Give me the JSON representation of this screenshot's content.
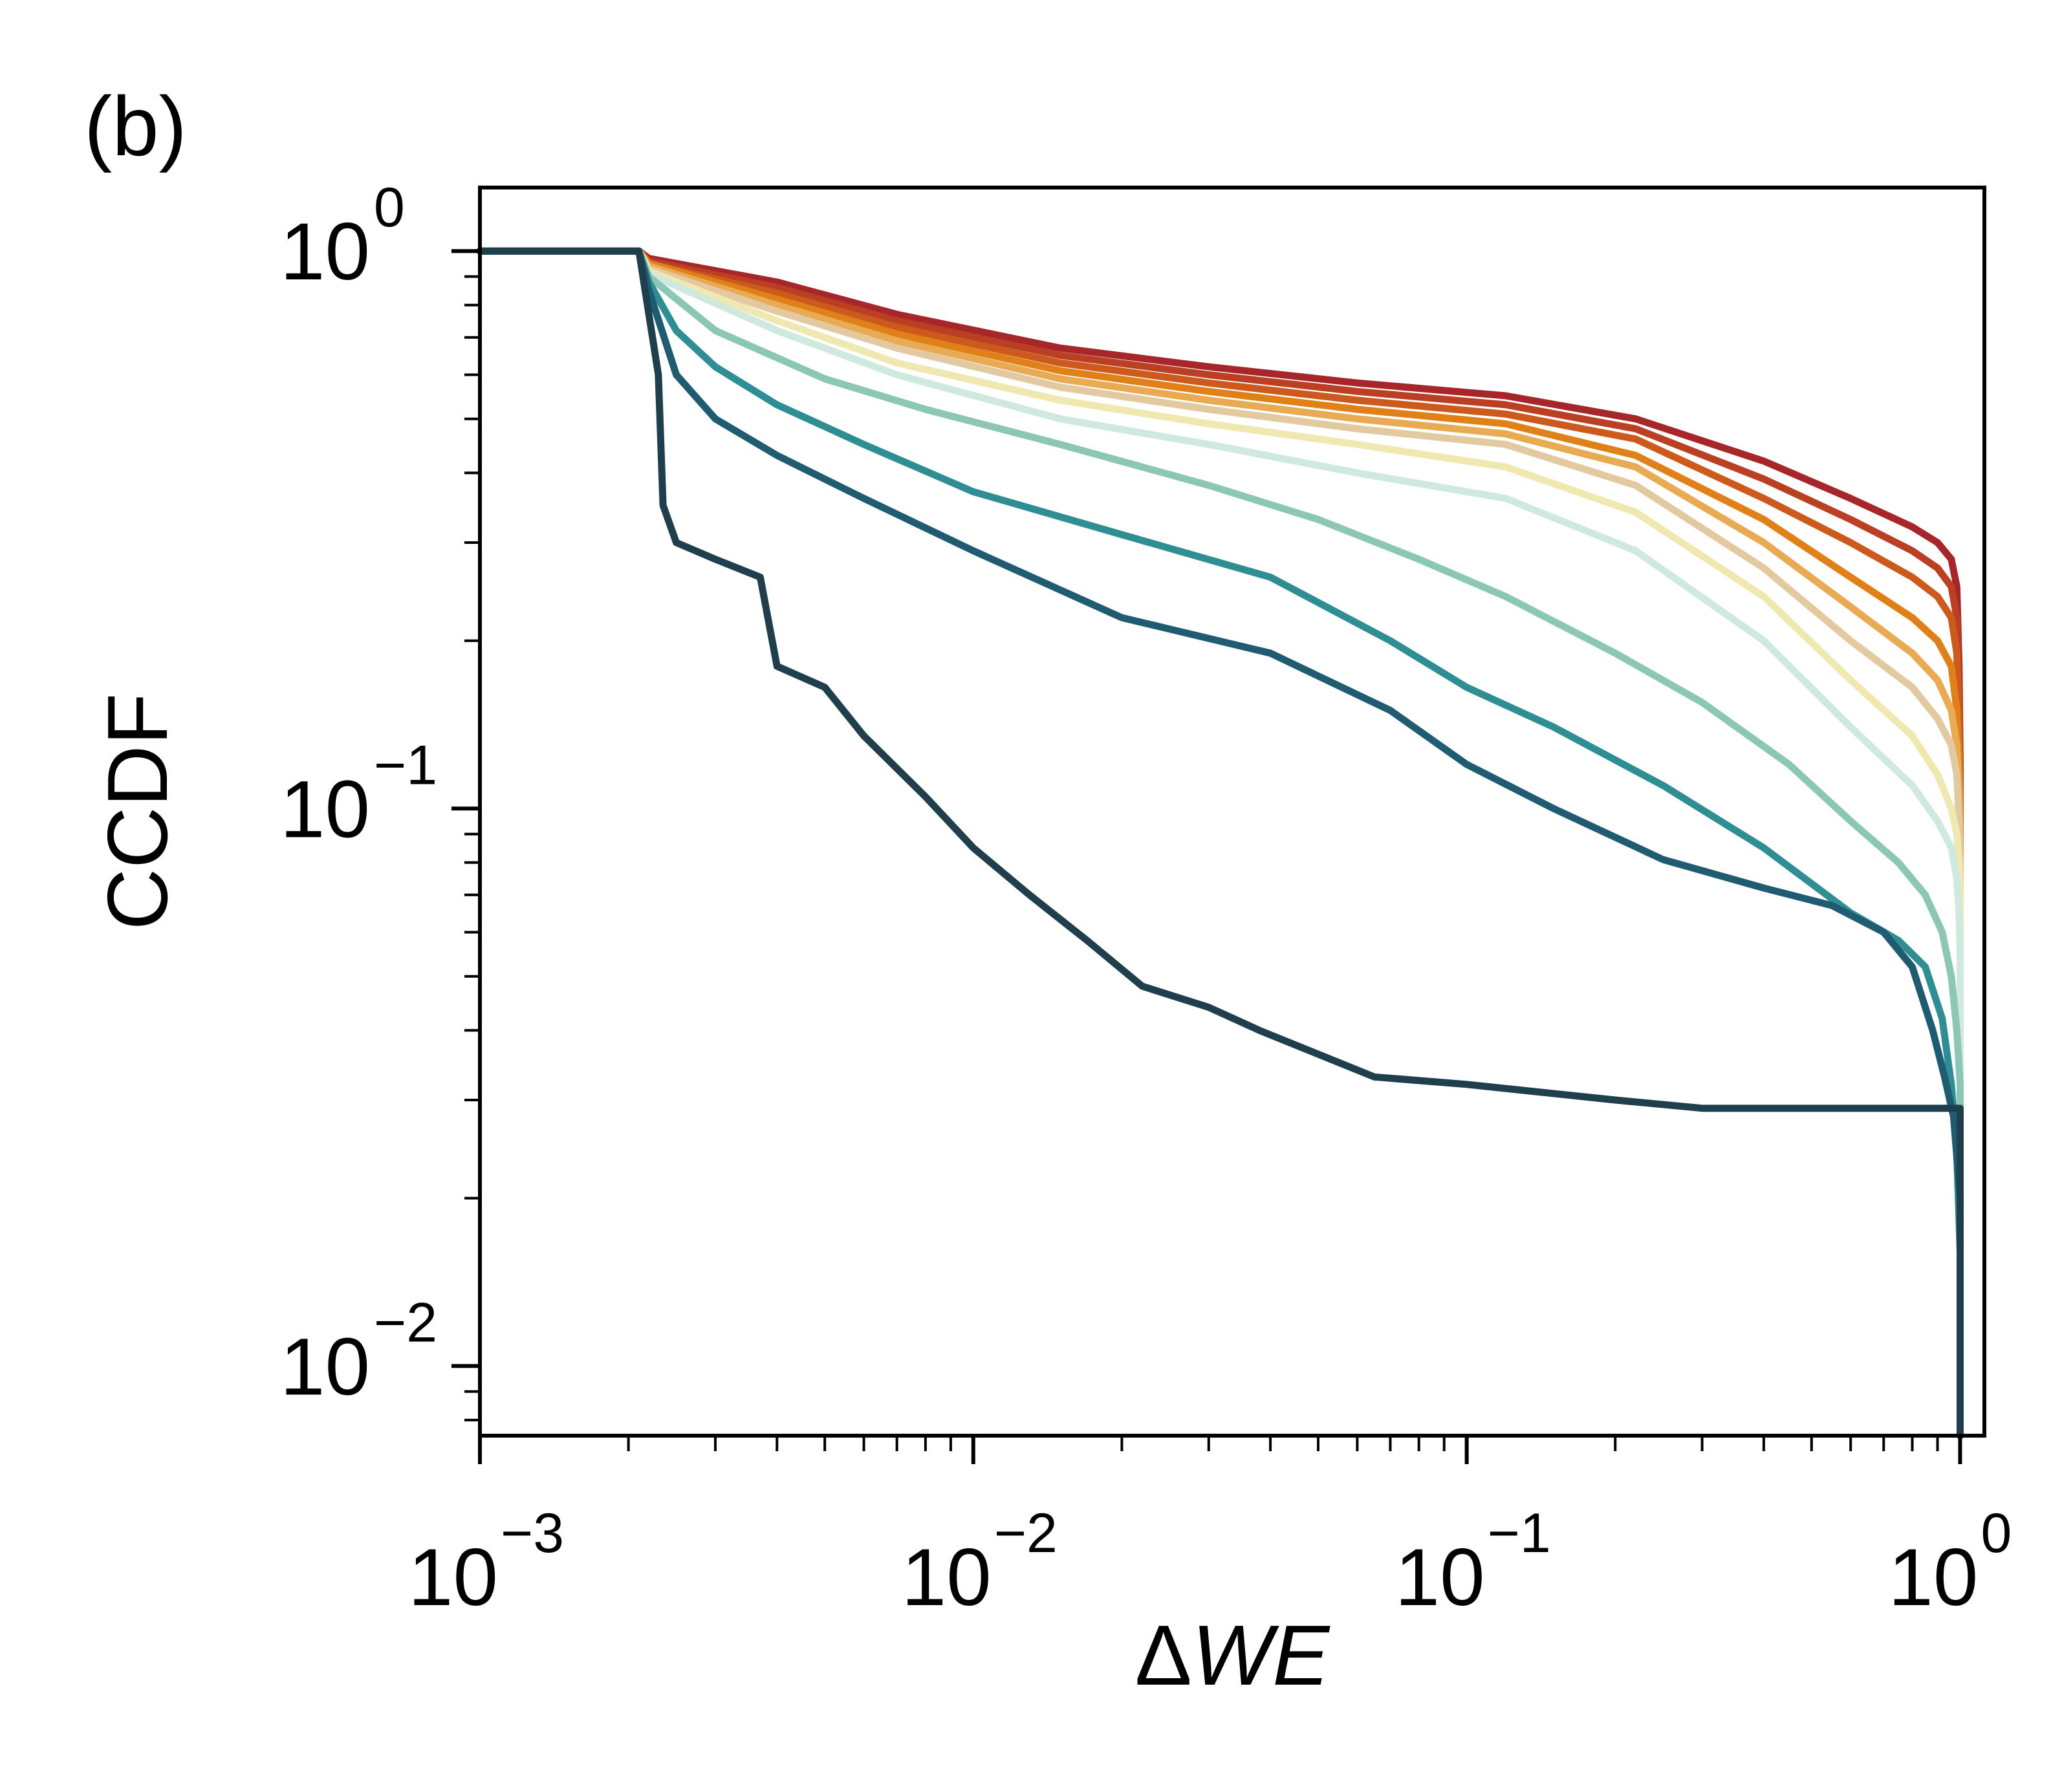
{
  "panel_label": "(b)",
  "chart_data": {
    "type": "line",
    "title": "",
    "xlabel": "ΔWE",
    "xlabel_delta": "Δ",
    "xlabel_var": "WE",
    "ylabel": "CCDF",
    "x_scale": "log",
    "y_scale": "log",
    "xlim": [
      0.001,
      1.12
    ],
    "ylim": [
      0.0075,
      1.3
    ],
    "grid": false,
    "legend": "none",
    "x_ticks": [
      {
        "value": 0.001,
        "base": "10",
        "exp": "−3"
      },
      {
        "value": 0.01,
        "base": "10",
        "exp": "−2"
      },
      {
        "value": 0.1,
        "base": "10",
        "exp": "−1"
      },
      {
        "value": 1,
        "base": "10",
        "exp": "0"
      }
    ],
    "y_ticks": [
      {
        "value": 1,
        "base": "10",
        "exp": "0"
      },
      {
        "value": 0.1,
        "base": "10",
        "exp": "−1"
      },
      {
        "value": 0.01,
        "base": "10",
        "exp": "−2"
      }
    ],
    "series": [
      {
        "color": "#a6262a",
        "x": [
          0.001,
          0.0021,
          0.0022,
          0.004,
          0.007,
          0.015,
          0.03,
          0.06,
          0.12,
          0.22,
          0.4,
          0.6,
          0.8,
          0.9,
          0.96,
          0.985,
          0.995,
          1.0,
          1.0
        ],
        "y": [
          1.0,
          1.0,
          0.97,
          0.88,
          0.77,
          0.67,
          0.62,
          0.58,
          0.55,
          0.5,
          0.42,
          0.36,
          0.32,
          0.3,
          0.28,
          0.25,
          0.18,
          0.12,
          0.0075
        ]
      },
      {
        "color": "#bb3f22",
        "x": [
          0.001,
          0.0021,
          0.0022,
          0.004,
          0.007,
          0.015,
          0.03,
          0.06,
          0.12,
          0.22,
          0.4,
          0.6,
          0.8,
          0.9,
          0.96,
          0.985,
          0.995,
          1.0,
          1.0
        ],
        "y": [
          1.0,
          1.0,
          0.96,
          0.86,
          0.75,
          0.65,
          0.6,
          0.56,
          0.53,
          0.48,
          0.39,
          0.33,
          0.29,
          0.27,
          0.25,
          0.22,
          0.16,
          0.11,
          0.0075
        ]
      },
      {
        "color": "#cc5a1c",
        "x": [
          0.001,
          0.0021,
          0.0022,
          0.004,
          0.007,
          0.015,
          0.03,
          0.06,
          0.12,
          0.22,
          0.4,
          0.6,
          0.8,
          0.9,
          0.96,
          0.985,
          0.995,
          1.0,
          1.0
        ],
        "y": [
          1.0,
          1.0,
          0.95,
          0.84,
          0.73,
          0.63,
          0.58,
          0.54,
          0.51,
          0.46,
          0.36,
          0.3,
          0.26,
          0.24,
          0.22,
          0.19,
          0.14,
          0.1,
          0.0075
        ]
      },
      {
        "color": "#e08018",
        "x": [
          0.001,
          0.0021,
          0.0022,
          0.004,
          0.007,
          0.015,
          0.03,
          0.06,
          0.12,
          0.22,
          0.4,
          0.6,
          0.8,
          0.9,
          0.96,
          0.985,
          0.995,
          1.0,
          1.0
        ],
        "y": [
          1.0,
          1.0,
          0.95,
          0.82,
          0.71,
          0.61,
          0.56,
          0.52,
          0.49,
          0.43,
          0.33,
          0.26,
          0.22,
          0.2,
          0.18,
          0.15,
          0.12,
          0.09,
          0.0075
        ]
      },
      {
        "color": "#e9aa54",
        "x": [
          0.001,
          0.0021,
          0.0022,
          0.004,
          0.007,
          0.015,
          0.03,
          0.06,
          0.12,
          0.22,
          0.4,
          0.6,
          0.8,
          0.9,
          0.96,
          0.985,
          0.995,
          1.0,
          1.0
        ],
        "y": [
          1.0,
          1.0,
          0.94,
          0.8,
          0.69,
          0.59,
          0.54,
          0.5,
          0.47,
          0.41,
          0.3,
          0.23,
          0.19,
          0.17,
          0.15,
          0.13,
          0.105,
          0.08,
          0.0075
        ]
      },
      {
        "color": "#e3c9a0",
        "x": [
          0.001,
          0.0021,
          0.0022,
          0.004,
          0.007,
          0.015,
          0.03,
          0.06,
          0.12,
          0.22,
          0.4,
          0.6,
          0.8,
          0.9,
          0.96,
          0.985,
          0.995,
          1.0,
          1.0
        ],
        "y": [
          1.0,
          1.0,
          0.93,
          0.78,
          0.67,
          0.57,
          0.52,
          0.48,
          0.45,
          0.38,
          0.27,
          0.2,
          0.165,
          0.145,
          0.13,
          0.115,
          0.095,
          0.075,
          0.0075
        ]
      },
      {
        "color": "#efe8b0",
        "x": [
          0.001,
          0.0021,
          0.0022,
          0.004,
          0.007,
          0.015,
          0.03,
          0.06,
          0.12,
          0.22,
          0.4,
          0.6,
          0.8,
          0.9,
          0.96,
          0.985,
          0.995,
          1.0,
          1.0
        ],
        "y": [
          1.0,
          1.0,
          0.92,
          0.75,
          0.63,
          0.54,
          0.49,
          0.45,
          0.41,
          0.34,
          0.24,
          0.17,
          0.135,
          0.115,
          0.1,
          0.09,
          0.08,
          0.07,
          0.0075
        ]
      },
      {
        "color": "#cfe9de",
        "x": [
          0.001,
          0.0021,
          0.0022,
          0.004,
          0.007,
          0.015,
          0.03,
          0.06,
          0.12,
          0.22,
          0.4,
          0.6,
          0.8,
          0.9,
          0.96,
          0.985,
          0.995,
          1.0,
          1.0
        ],
        "y": [
          1.0,
          1.0,
          0.91,
          0.72,
          0.6,
          0.5,
          0.45,
          0.4,
          0.36,
          0.29,
          0.2,
          0.14,
          0.11,
          0.095,
          0.085,
          0.075,
          0.065,
          0.055,
          0.0075
        ]
      },
      {
        "color": "#8cc6b5",
        "x": [
          0.001,
          0.0021,
          0.0022,
          0.003,
          0.005,
          0.008,
          0.015,
          0.03,
          0.05,
          0.08,
          0.12,
          0.2,
          0.3,
          0.45,
          0.6,
          0.75,
          0.85,
          0.92,
          0.96,
          0.985,
          1.0,
          1.0
        ],
        "y": [
          1.0,
          1.0,
          0.9,
          0.72,
          0.59,
          0.52,
          0.45,
          0.38,
          0.33,
          0.28,
          0.24,
          0.19,
          0.155,
          0.12,
          0.095,
          0.08,
          0.07,
          0.06,
          0.05,
          0.04,
          0.032,
          0.0075
        ]
      },
      {
        "color": "#2f8e93",
        "x": [
          0.001,
          0.0021,
          0.0022,
          0.0025,
          0.003,
          0.004,
          0.006,
          0.01,
          0.02,
          0.04,
          0.07,
          0.1,
          0.15,
          0.25,
          0.4,
          0.6,
          0.75,
          0.85,
          0.92,
          0.96,
          0.985,
          1.0,
          1.0
        ],
        "y": [
          1.0,
          1.0,
          0.88,
          0.72,
          0.62,
          0.53,
          0.45,
          0.37,
          0.31,
          0.26,
          0.2,
          0.165,
          0.14,
          0.11,
          0.085,
          0.065,
          0.058,
          0.052,
          0.042,
          0.032,
          0.024,
          0.016,
          0.0075
        ]
      },
      {
        "color": "#1f5c72",
        "x": [
          0.001,
          0.0021,
          0.0022,
          0.0025,
          0.003,
          0.004,
          0.006,
          0.01,
          0.02,
          0.04,
          0.07,
          0.1,
          0.15,
          0.25,
          0.4,
          0.55,
          0.7,
          0.8,
          0.88,
          0.93,
          0.97,
          1.0,
          1.0
        ],
        "y": [
          1.0,
          1.0,
          0.85,
          0.6,
          0.5,
          0.43,
          0.36,
          0.29,
          0.22,
          0.19,
          0.15,
          0.12,
          0.1,
          0.081,
          0.072,
          0.067,
          0.06,
          0.052,
          0.04,
          0.033,
          0.028,
          0.02,
          0.0075
        ]
      },
      {
        "color": "#1f3f4d",
        "x": [
          0.001,
          0.0021,
          0.0023,
          0.00235,
          0.0025,
          0.003,
          0.0037,
          0.004,
          0.005,
          0.006,
          0.008,
          0.01,
          0.013,
          0.017,
          0.022,
          0.03,
          0.038,
          0.065,
          0.1,
          0.2,
          0.3,
          0.6,
          1.0,
          1.0
        ],
        "y": [
          1.0,
          1.0,
          0.6,
          0.35,
          0.3,
          0.28,
          0.26,
          0.18,
          0.165,
          0.135,
          0.105,
          0.085,
          0.07,
          0.058,
          0.048,
          0.044,
          0.04,
          0.033,
          0.032,
          0.03,
          0.029,
          0.029,
          0.029,
          0.0075
        ]
      }
    ]
  }
}
